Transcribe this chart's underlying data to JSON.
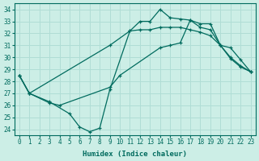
{
  "xlabel": "Humidex (Indice chaleur)",
  "bg_color": "#cceee6",
  "grid_color": "#b0ddd5",
  "line_color": "#006b5e",
  "xlim": [
    -0.5,
    23.5
  ],
  "ylim": [
    23.5,
    34.5
  ],
  "yticks": [
    24,
    25,
    26,
    27,
    28,
    29,
    30,
    31,
    32,
    33,
    34
  ],
  "xticks": [
    0,
    1,
    2,
    3,
    4,
    5,
    6,
    7,
    8,
    9,
    10,
    11,
    12,
    13,
    14,
    15,
    16,
    17,
    18,
    19,
    20,
    21,
    22,
    23
  ],
  "curves": [
    {
      "x": [
        0,
        1,
        9,
        11,
        12,
        13,
        14,
        15,
        16,
        17,
        18,
        19,
        20,
        21,
        22,
        23
      ],
      "y": [
        28.5,
        27.0,
        31.0,
        32.2,
        33.0,
        33.0,
        34.0,
        33.3,
        33.2,
        33.1,
        32.8,
        32.8,
        31.0,
        30.0,
        29.3,
        28.8
      ],
      "marker": "+"
    },
    {
      "x": [
        0,
        1,
        3,
        4,
        9,
        10,
        14,
        15,
        16,
        17,
        18,
        19,
        20,
        21,
        22,
        23
      ],
      "y": [
        28.5,
        27.0,
        26.2,
        26.0,
        27.5,
        28.5,
        30.8,
        31.0,
        31.2,
        33.1,
        32.5,
        32.3,
        31.0,
        30.8,
        29.8,
        28.8
      ],
      "marker": "+"
    },
    {
      "x": [
        0,
        1,
        3,
        5,
        6,
        7,
        8,
        9,
        11,
        12,
        13,
        14,
        15,
        16,
        17,
        18,
        19,
        20,
        21,
        22,
        23
      ],
      "y": [
        28.5,
        27.0,
        26.3,
        25.3,
        24.2,
        23.8,
        24.1,
        27.3,
        32.2,
        32.3,
        32.3,
        32.5,
        32.5,
        32.5,
        32.3,
        32.1,
        31.8,
        31.0,
        29.9,
        29.2,
        28.8
      ],
      "marker": "+"
    }
  ]
}
